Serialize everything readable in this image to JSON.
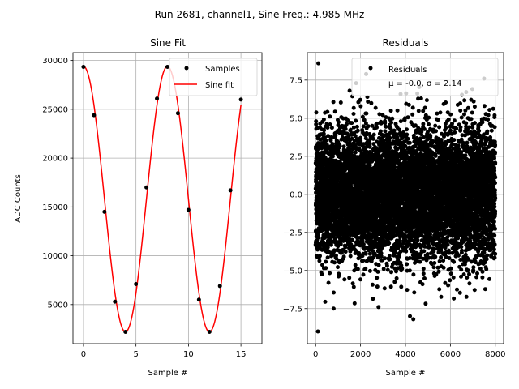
{
  "suptitle": "Run 2681, channel1, Sine Freq.: 4.985 MHz",
  "chart_data": [
    {
      "type": "scatter",
      "title": "Sine Fit",
      "xlabel": "Sample #",
      "ylabel": "ADC Counts",
      "xlim": [
        -1,
        17
      ],
      "ylim": [
        1000,
        30800
      ],
      "xticks": [
        0,
        5,
        10,
        15
      ],
      "yticks": [
        5000,
        10000,
        15000,
        20000,
        25000,
        30000
      ],
      "grid": true,
      "legend_position": "top-right",
      "series": [
        {
          "name": "Samples",
          "kind": "points",
          "color": "#000000",
          "x": [
            0,
            1,
            2,
            3,
            4,
            5,
            6,
            7,
            8,
            9,
            10,
            11,
            12,
            13,
            14,
            15
          ],
          "y": [
            29350,
            24400,
            14500,
            5300,
            2200,
            7100,
            17000,
            26100,
            29350,
            24600,
            14700,
            5500,
            2200,
            6900,
            16700,
            26000
          ]
        },
        {
          "name": "Sine fit",
          "kind": "line",
          "color": "#ff0000",
          "fit": {
            "offset": 15800,
            "amplitude": 13600,
            "period": 8,
            "phase_x": 0,
            "x_start": 0,
            "x_end": 15
          }
        }
      ]
    },
    {
      "type": "scatter",
      "title": "Residuals",
      "xlabel": "Sample #",
      "ylabel": "",
      "xlim": [
        -370,
        8370
      ],
      "ylim": [
        -9.8,
        9.3
      ],
      "xticks": [
        0,
        2000,
        4000,
        6000,
        8000
      ],
      "yticks": [
        -7.5,
        -5.0,
        -2.5,
        0.0,
        2.5,
        5.0,
        7.5
      ],
      "ytick_labels": [
        "−7.5",
        "−5.0",
        "−2.5",
        "0.0",
        "2.5",
        "5.0",
        "7.5"
      ],
      "grid": true,
      "legend_position": "top-right",
      "series": [
        {
          "name": "Residuals",
          "kind": "points",
          "color": "#000000",
          "distribution": {
            "count": 8000,
            "mean": 0.0,
            "sigma": 2.14,
            "x_min": 0,
            "x_max": 8000
          },
          "outliers": [
            {
              "x": 120,
              "y": 8.6
            },
            {
              "x": 100,
              "y": -9.0
            },
            {
              "x": 2250,
              "y": 7.9
            },
            {
              "x": 4500,
              "y": 8.2
            },
            {
              "x": 4200,
              "y": -8.0
            },
            {
              "x": 4350,
              "y": -8.2
            },
            {
              "x": 1800,
              "y": 7.3
            },
            {
              "x": 7500,
              "y": 7.6
            },
            {
              "x": 800,
              "y": -7.5
            },
            {
              "x": 2800,
              "y": -7.4
            }
          ]
        }
      ],
      "legend_label": "Residuals",
      "legend_stats": "μ = -0.0, σ = 2.14"
    }
  ]
}
